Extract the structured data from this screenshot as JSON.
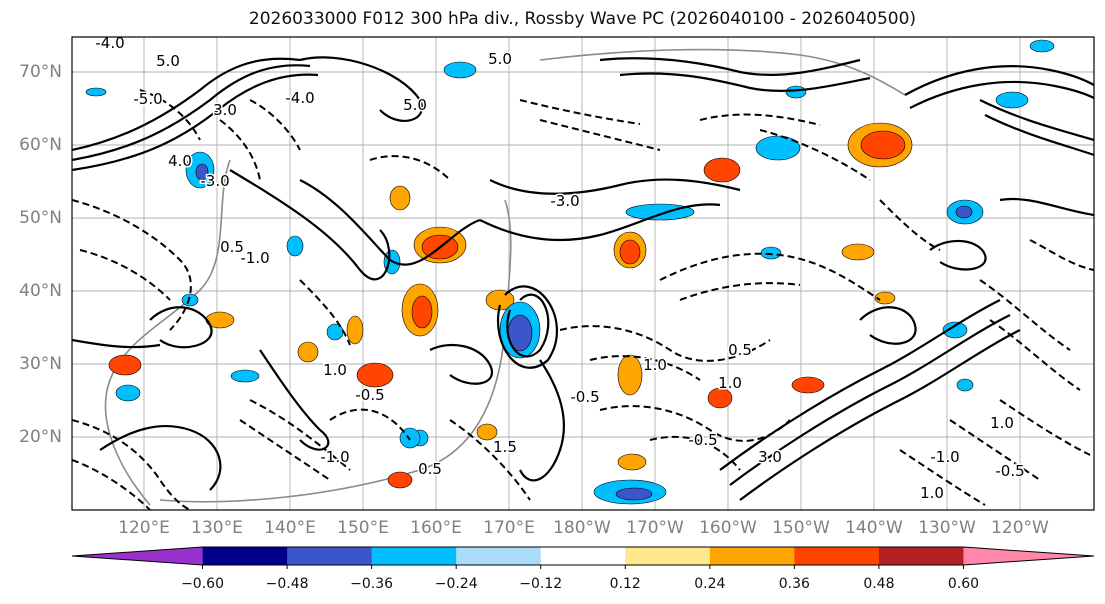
{
  "title": "2026033000 F012 300 hPa div., Rossby Wave PC (2026040100 - 2026040500)",
  "map": {
    "lat_labels": [
      "70°N",
      "60°N",
      "50°N",
      "40°N",
      "30°N",
      "20°N"
    ],
    "lon_labels": [
      "120°E",
      "130°E",
      "140°E",
      "150°E",
      "160°E",
      "170°E",
      "180°W",
      "170°W",
      "160°W",
      "150°W",
      "140°W",
      "130°W",
      "120°W"
    ],
    "contour_labels": [
      "-4.0",
      "-5.0",
      "5.0",
      "5.0",
      "3.0",
      "4.0",
      "-3.0",
      "-4.0",
      "5.0",
      "-3.0",
      "-1.0",
      "0.5",
      "1.0",
      "-1.0",
      "-0.5",
      "1.0",
      "-0.5",
      "-0.5",
      "0.5",
      "1.0",
      "-1.0",
      "-0.5",
      "1.0",
      "0.5",
      "3.0",
      "1.5",
      "1.0"
    ]
  },
  "colorbar": {
    "colors": [
      "#9932cc",
      "#00008b",
      "#3a56c9",
      "#00bfff",
      "#aadcf8",
      "#ffffff",
      "#ffe88a",
      "#ffa500",
      "#ff4500",
      "#b22222",
      "#ff88aa"
    ],
    "ticks": [
      "−0.60",
      "−0.48",
      "−0.36",
      "−0.24",
      "−0.12",
      "0.12",
      "0.24",
      "0.36",
      "0.48",
      "0.60"
    ]
  },
  "anomaly_colors": {
    "pos_weak": "#ffa500",
    "pos_strong": "#ff4500",
    "neg_weak": "#00bfff",
    "neg_strong": "#3a56c9"
  }
}
